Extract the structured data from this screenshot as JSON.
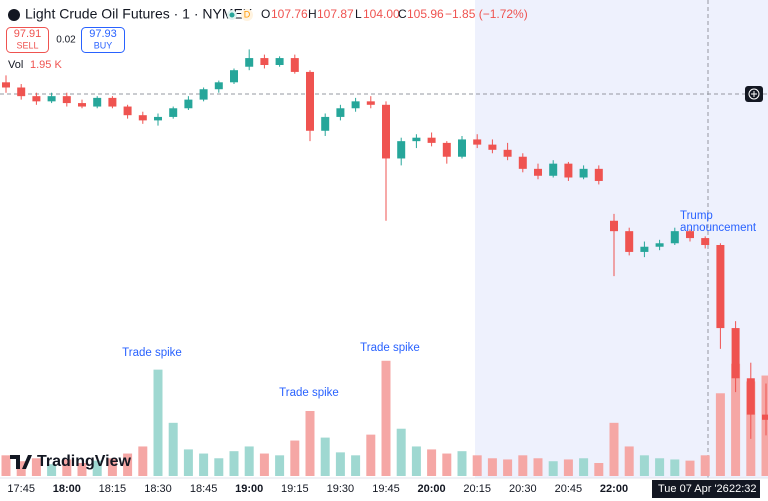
{
  "header": {
    "title": "Light Crude Oil Futures · 1 · NYMEX",
    "badge": "D",
    "o_label": "O",
    "o": "107.76",
    "h_label": "H",
    "h": "107.87",
    "l_label": "L",
    "l": "104.00",
    "c_label": "C",
    "c": "105.96",
    "change": "−1.85 (−1.72%)",
    "sell_price": "97.91",
    "sell": "SELL",
    "spread": "0.02",
    "buy_price": "97.93",
    "buy": "BUY",
    "vol_label": "Vol",
    "vol": "1.95 K",
    "logo": "TradingView",
    "cursor_date": "Tue 07 Apr '26",
    "cursor_time": "22:32"
  },
  "chart_data": {
    "type": "candlestick",
    "categories": [
      null,
      "17:45",
      null,
      null,
      "18:00",
      null,
      null,
      "18:15",
      null,
      null,
      "18:30",
      null,
      null,
      "18:45",
      null,
      null,
      "19:00",
      null,
      null,
      "19:15",
      null,
      null,
      "19:30",
      null,
      null,
      "19:45",
      null,
      null,
      "20:00",
      null,
      null,
      "20:15",
      null,
      null,
      "20:30",
      null,
      null,
      "20:45",
      null,
      null,
      "22:00",
      null,
      null,
      null,
      null,
      null,
      null,
      null,
      null,
      null,
      null
    ],
    "open": [
      118.4,
      118.1,
      117.6,
      117.3,
      117.6,
      117.2,
      117.0,
      117.5,
      117.0,
      116.5,
      116.2,
      116.4,
      116.9,
      117.4,
      118.0,
      118.4,
      119.3,
      119.8,
      119.4,
      119.8,
      119.0,
      115.6,
      116.4,
      116.9,
      117.3,
      117.1,
      114.0,
      115.0,
      115.2,
      114.9,
      114.1,
      115.1,
      114.8,
      114.5,
      114.1,
      113.4,
      113.0,
      113.7,
      112.9,
      113.4,
      110.4,
      109.8,
      108.6,
      108.9,
      109.1,
      109.8,
      109.4,
      109.0,
      104.2,
      101.3,
      99.2
    ],
    "high": [
      118.8,
      118.3,
      117.8,
      117.8,
      117.8,
      117.4,
      117.6,
      117.6,
      117.1,
      116.7,
      116.6,
      117.0,
      117.6,
      118.1,
      118.5,
      119.2,
      120.3,
      120.0,
      119.9,
      120.0,
      119.1,
      116.6,
      117.1,
      117.5,
      117.6,
      117.3,
      115.2,
      115.4,
      115.5,
      115.0,
      115.3,
      115.4,
      115.1,
      114.9,
      114.3,
      113.7,
      113.9,
      113.8,
      113.6,
      113.6,
      110.8,
      110.0,
      109.2,
      109.3,
      110.0,
      109.9,
      109.5,
      109.1,
      104.6,
      102.2,
      101.0
    ],
    "low": [
      117.8,
      117.4,
      117.1,
      117.2,
      117.0,
      116.9,
      116.9,
      116.9,
      116.3,
      116.0,
      115.9,
      116.3,
      116.8,
      117.3,
      117.8,
      118.3,
      119.1,
      119.2,
      119.3,
      118.9,
      115.0,
      115.3,
      116.2,
      116.7,
      116.9,
      110.4,
      113.6,
      114.6,
      114.7,
      113.7,
      114.0,
      114.6,
      114.3,
      113.9,
      113.2,
      112.8,
      112.9,
      112.7,
      112.8,
      112.5,
      107.2,
      108.4,
      108.3,
      108.7,
      109.0,
      109.2,
      108.8,
      103.0,
      100.5,
      97.8,
      98.0
    ],
    "close": [
      118.1,
      117.6,
      117.3,
      117.6,
      117.2,
      117.0,
      117.5,
      117.0,
      116.5,
      116.2,
      116.4,
      116.9,
      117.4,
      118.0,
      118.4,
      119.1,
      119.8,
      119.4,
      119.8,
      119.0,
      115.6,
      116.4,
      116.9,
      117.3,
      117.1,
      114.0,
      115.0,
      115.2,
      114.9,
      114.1,
      115.1,
      114.8,
      114.5,
      114.1,
      113.4,
      113.0,
      113.7,
      112.9,
      113.4,
      112.7,
      109.8,
      108.6,
      108.9,
      109.1,
      109.8,
      109.4,
      109.0,
      104.2,
      101.3,
      99.2,
      98.9
    ],
    "volume": [
      350,
      250,
      300,
      200,
      280,
      220,
      260,
      300,
      380,
      500,
      1800,
      900,
      450,
      380,
      300,
      420,
      500,
      380,
      350,
      600,
      1100,
      650,
      400,
      350,
      700,
      1950,
      800,
      500,
      450,
      380,
      420,
      350,
      300,
      280,
      350,
      300,
      250,
      280,
      300,
      220,
      900,
      500,
      350,
      300,
      280,
      260,
      350,
      1400,
      1900,
      1600,
      1700
    ],
    "ylim": [
      96,
      122
    ],
    "volume_lim": [
      0,
      2200
    ],
    "up_color": "#26a69a",
    "down_color": "#ef5350",
    "volume_up_color": "#9fd8d1",
    "volume_down_color": "#f5a7a5",
    "annotations": [
      "Trade spike",
      "Trade spike",
      "Trade spike",
      "Trump",
      "announcement"
    ]
  }
}
